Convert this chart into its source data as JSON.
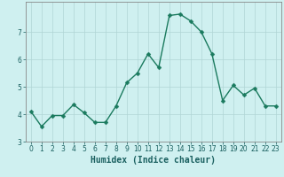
{
  "x": [
    0,
    1,
    2,
    3,
    4,
    5,
    6,
    7,
    8,
    9,
    10,
    11,
    12,
    13,
    14,
    15,
    16,
    17,
    18,
    19,
    20,
    21,
    22,
    23
  ],
  "y": [
    4.1,
    3.55,
    3.95,
    3.95,
    4.35,
    4.05,
    3.7,
    3.7,
    4.3,
    5.15,
    5.5,
    6.2,
    5.7,
    7.6,
    7.65,
    7.4,
    7.0,
    6.2,
    4.5,
    5.05,
    4.7,
    4.95,
    4.3,
    4.3
  ],
  "line_color": "#1a7a5e",
  "marker": "D",
  "markersize": 2.5,
  "linewidth": 1.0,
  "bg_color": "#cff0f0",
  "grid_color": "#b0d5d5",
  "xlabel": "Humidex (Indice chaleur)",
  "ylabel": "",
  "title": "",
  "xlim": [
    -0.5,
    23.5
  ],
  "ylim": [
    3.0,
    8.1
  ],
  "yticks": [
    3,
    4,
    5,
    6,
    7
  ],
  "xticks": [
    0,
    1,
    2,
    3,
    4,
    5,
    6,
    7,
    8,
    9,
    10,
    11,
    12,
    13,
    14,
    15,
    16,
    17,
    18,
    19,
    20,
    21,
    22,
    23
  ],
  "tick_fontsize": 5.5,
  "xlabel_fontsize": 7.0,
  "tick_color": "#1a6060",
  "spine_color": "#555555"
}
